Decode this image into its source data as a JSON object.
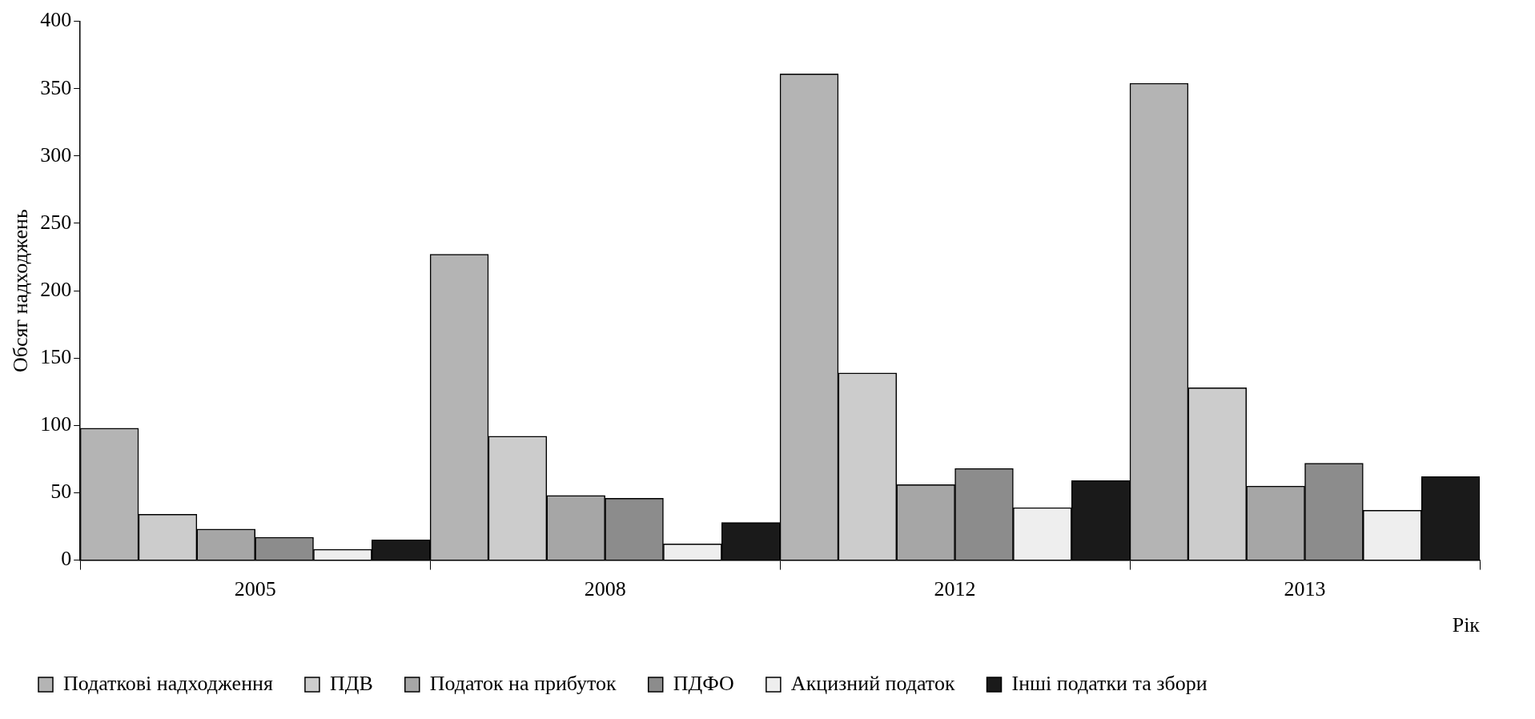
{
  "chart_data": {
    "type": "bar",
    "xlabel": "Рік",
    "ylabel": "Обсяг надходжень",
    "categories": [
      "2005",
      "2008",
      "2012",
      "2013"
    ],
    "series": [
      {
        "name": "Податкові надходження",
        "color": "#b4b4b4",
        "values": [
          98,
          227,
          361,
          354
        ]
      },
      {
        "name": "ПДВ",
        "color": "#cccccc",
        "values": [
          34,
          92,
          139,
          128
        ]
      },
      {
        "name": "Податок на прибуток",
        "color": "#a6a6a6",
        "values": [
          23,
          48,
          56,
          55
        ]
      },
      {
        "name": "ПДФО",
        "color": "#8c8c8c",
        "values": [
          17,
          46,
          68,
          72
        ]
      },
      {
        "name": "Акцизний податок",
        "color": "#eeeeee",
        "values": [
          8,
          12,
          39,
          37
        ]
      },
      {
        "name": "Інші податки та збори",
        "color": "#1a1a1a",
        "values": [
          15,
          28,
          59,
          62
        ]
      }
    ],
    "ylim": [
      0,
      400
    ],
    "yticks": [
      0,
      50,
      100,
      150,
      200,
      250,
      300,
      350,
      400
    ],
    "grid": false,
    "legend": "bottom"
  }
}
